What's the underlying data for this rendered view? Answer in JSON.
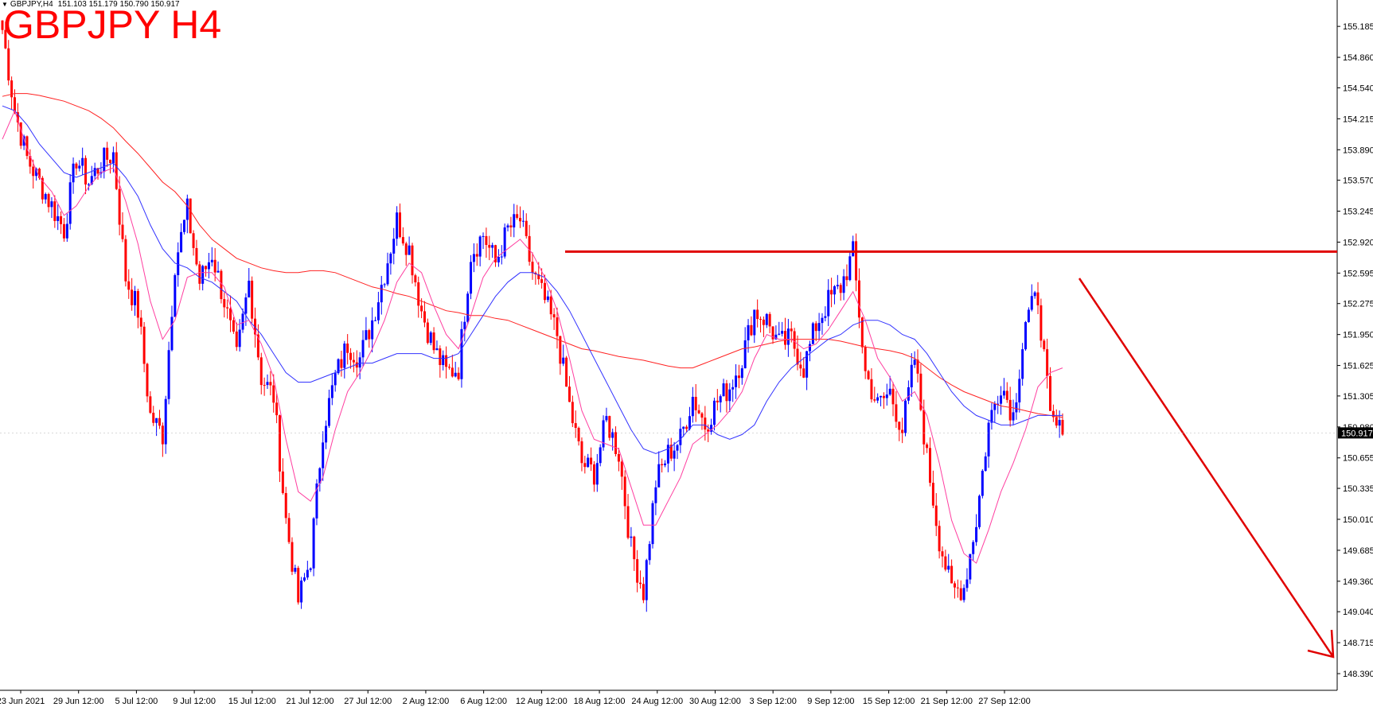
{
  "header": {
    "symbol_tf": "GBPJPY,H4",
    "ohlc": "151.103 151.179 150.790 150.917"
  },
  "title_overlay": "GBPJPY H4",
  "colors": {
    "bull": "#0000ff",
    "bear": "#ff0000",
    "ma_fast": "#ff3fa0",
    "ma_mid": "#3333ff",
    "ma_slow": "#ff2222",
    "annotation": "#e00000",
    "price_tag_bg": "#000000"
  },
  "chart_data": {
    "type": "candlestick",
    "title": "GBPJPY H4",
    "ylim": [
      148.215,
      155.345
    ],
    "y_ticks": [
      "155.185",
      "154.860",
      "154.540",
      "154.215",
      "153.890",
      "153.570",
      "153.245",
      "152.920",
      "152.595",
      "152.275",
      "151.950",
      "151.625",
      "151.305",
      "150.980",
      "150.655",
      "150.335",
      "150.010",
      "149.685",
      "149.360",
      "149.040",
      "148.715",
      "148.390"
    ],
    "x_labels": [
      "23 Jun 2021",
      "29 Jun 12:00",
      "5 Jul 12:00",
      "9 Jul 12:00",
      "15 Jul 12:00",
      "21 Jul 12:00",
      "27 Jul 12:00",
      "2 Aug 12:00",
      "6 Aug 12:00",
      "12 Aug 12:00",
      "18 Aug 12:00",
      "24 Aug 12:00",
      "30 Aug 12:00",
      "3 Sep 12:00",
      "9 Sep 12:00",
      "15 Sep 12:00",
      "21 Sep 12:00",
      "27 Sep 12:00"
    ],
    "current_price": "150.917",
    "close_path": [
      155.15,
      154.3,
      153.8,
      153.55,
      153.3,
      153.05,
      153.8,
      153.55,
      153.75,
      153.85,
      152.55,
      152.2,
      151.1,
      150.9,
      152.7,
      153.25,
      152.5,
      152.8,
      152.3,
      151.7,
      152.5,
      151.5,
      151.3,
      150.0,
      149.15,
      149.6,
      150.95,
      151.5,
      151.85,
      151.7,
      152.1,
      152.6,
      153.15,
      152.85,
      152.2,
      151.8,
      151.55,
      151.6,
      152.8,
      153.0,
      152.7,
      153.05,
      153.15,
      152.6,
      152.3,
      151.95,
      151.2,
      150.6,
      150.5,
      151.05,
      150.7,
      149.7,
      149.25,
      150.4,
      150.7,
      150.85,
      151.3,
      151.0,
      151.25,
      151.4,
      151.7,
      152.2,
      152.1,
      151.85,
      151.9,
      151.6,
      152.05,
      152.3,
      152.45,
      152.8,
      151.55,
      151.2,
      151.35,
      150.95,
      151.7,
      150.65,
      149.8,
      149.25,
      149.3,
      150.0,
      151.0,
      151.45,
      151.1,
      152.1,
      152.35,
      151.05,
      150.9
    ],
    "ma_fast": [
      154.0,
      154.3,
      153.9,
      153.6,
      153.45,
      153.2,
      153.3,
      153.5,
      153.65,
      153.7,
      153.35,
      152.9,
      152.3,
      151.9,
      152.1,
      152.55,
      152.6,
      152.6,
      152.45,
      152.05,
      152.1,
      151.85,
      151.5,
      150.85,
      150.3,
      150.2,
      150.45,
      150.95,
      151.35,
      151.55,
      151.8,
      152.1,
      152.5,
      152.7,
      152.6,
      152.25,
      151.95,
      151.8,
      152.15,
      152.55,
      152.75,
      152.85,
      152.95,
      152.8,
      152.55,
      152.2,
      151.7,
      151.15,
      150.85,
      150.8,
      150.75,
      150.35,
      149.95,
      149.95,
      150.2,
      150.45,
      150.8,
      150.9,
      151.0,
      151.15,
      151.35,
      151.7,
      151.95,
      151.9,
      151.9,
      151.8,
      151.85,
      152.0,
      152.2,
      152.4,
      152.1,
      151.7,
      151.5,
      151.25,
      151.35,
      151.1,
      150.6,
      150.0,
      149.65,
      149.55,
      149.9,
      150.3,
      150.6,
      150.95,
      151.4,
      151.55,
      151.6
    ],
    "ma_mid": [
      154.35,
      154.3,
      154.15,
      153.95,
      153.8,
      153.65,
      153.6,
      153.65,
      153.7,
      153.75,
      153.6,
      153.4,
      153.1,
      152.85,
      152.7,
      152.65,
      152.55,
      152.5,
      152.4,
      152.3,
      152.1,
      151.95,
      151.75,
      151.55,
      151.45,
      151.45,
      151.5,
      151.55,
      151.6,
      151.65,
      151.65,
      151.7,
      151.75,
      151.75,
      151.75,
      151.7,
      151.7,
      151.75,
      151.95,
      152.15,
      152.35,
      152.5,
      152.6,
      152.6,
      152.55,
      152.4,
      152.2,
      151.95,
      151.7,
      151.45,
      151.2,
      150.95,
      150.75,
      150.7,
      150.75,
      150.85,
      151.0,
      151.0,
      150.9,
      150.85,
      150.9,
      151.0,
      151.25,
      151.45,
      151.6,
      151.7,
      151.8,
      151.9,
      151.95,
      152.05,
      152.1,
      152.1,
      152.05,
      151.95,
      151.9,
      151.75,
      151.55,
      151.35,
      151.2,
      151.1,
      151.05,
      151.0,
      151.0,
      151.05,
      151.1,
      151.1,
      151.1
    ],
    "ma_slow": [
      154.45,
      154.48,
      154.48,
      154.46,
      154.43,
      154.4,
      154.35,
      154.3,
      154.22,
      154.12,
      153.98,
      153.85,
      153.7,
      153.55,
      153.45,
      153.3,
      153.1,
      152.95,
      152.85,
      152.75,
      152.7,
      152.65,
      152.62,
      152.6,
      152.6,
      152.62,
      152.62,
      152.6,
      152.55,
      152.5,
      152.45,
      152.42,
      152.38,
      152.35,
      152.3,
      152.25,
      152.2,
      152.18,
      152.15,
      152.15,
      152.12,
      152.1,
      152.05,
      152.0,
      151.95,
      151.9,
      151.85,
      151.8,
      151.78,
      151.75,
      151.72,
      151.7,
      151.68,
      151.65,
      151.62,
      151.6,
      151.6,
      151.65,
      151.7,
      151.75,
      151.8,
      151.82,
      151.85,
      151.88,
      151.9,
      151.9,
      151.9,
      151.9,
      151.88,
      151.85,
      151.82,
      151.8,
      151.78,
      151.75,
      151.7,
      151.6,
      151.5,
      151.42,
      151.35,
      151.3,
      151.25,
      151.2,
      151.18,
      151.15,
      151.12,
      151.1,
      151.08
    ],
    "resistance_level": 152.82
  }
}
